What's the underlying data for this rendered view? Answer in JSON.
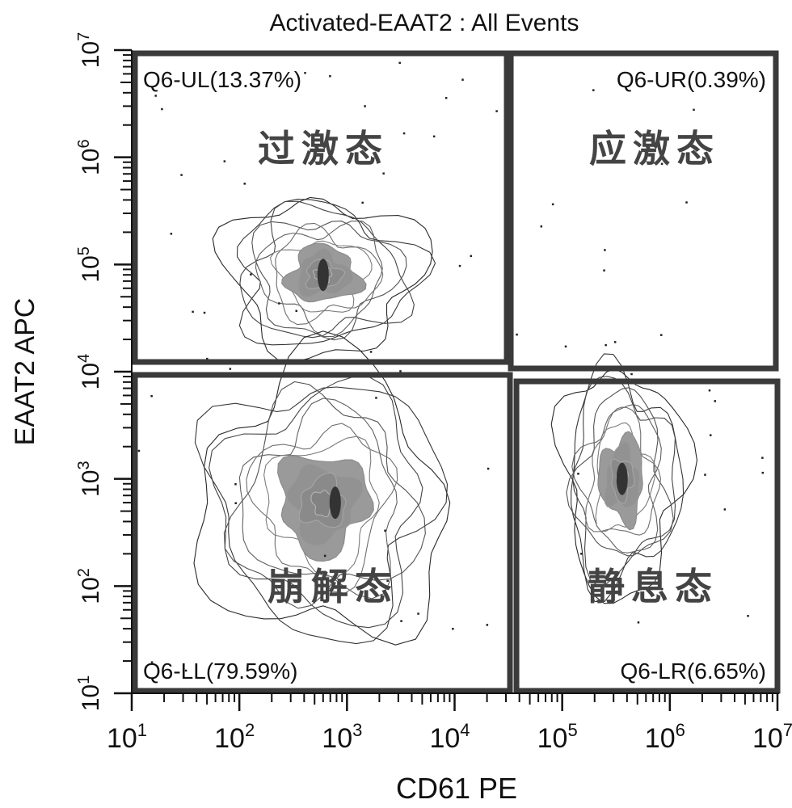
{
  "chart_data": {
    "type": "contour",
    "title": "Activated-EAAT2 : All Events",
    "xlabel": "CD61 PE",
    "ylabel": "EAAT2 APC",
    "xscale": "log",
    "yscale": "log",
    "xlim": [
      10,
      10000000
    ],
    "ylim": [
      10,
      10000000
    ],
    "x_ticks": [
      {
        "base": "10",
        "exp": "1",
        "value": 10
      },
      {
        "base": "10",
        "exp": "2",
        "value": 100
      },
      {
        "base": "10",
        "exp": "3",
        "value": 1000
      },
      {
        "base": "10",
        "exp": "4",
        "value": 10000
      },
      {
        "base": "10",
        "exp": "5",
        "value": 100000
      },
      {
        "base": "10",
        "exp": "6",
        "value": 1000000
      },
      {
        "base": "10",
        "exp": "7",
        "value": 10000000
      }
    ],
    "y_ticks": [
      {
        "base": "10",
        "exp": "1",
        "value": 10
      },
      {
        "base": "10",
        "exp": "2",
        "value": 100
      },
      {
        "base": "10",
        "exp": "3",
        "value": 1000
      },
      {
        "base": "10",
        "exp": "4",
        "value": 10000
      },
      {
        "base": "10",
        "exp": "5",
        "value": 100000
      },
      {
        "base": "10",
        "exp": "6",
        "value": 1000000
      },
      {
        "base": "10",
        "exp": "7",
        "value": 10000000
      }
    ],
    "gate_x": 31600,
    "gate_y": 10000,
    "quadrants": [
      {
        "id": "UL",
        "label": "Q6-UL(13.37%)",
        "percent": 13.37,
        "state": "过激态"
      },
      {
        "id": "UR",
        "label": "Q6-UR(0.39%)",
        "percent": 0.39,
        "state": "应激态"
      },
      {
        "id": "LL",
        "label": "Q6-LL(79.59%)",
        "percent": 79.59,
        "state": "崩解态"
      },
      {
        "id": "LR",
        "label": "Q6-LR(6.65%)",
        "percent": 6.65,
        "state": "静息态"
      }
    ],
    "populations": [
      {
        "quadrant": "UL",
        "x": 600,
        "y": 80000
      },
      {
        "quadrant": "LL",
        "x": 600,
        "y": 600
      },
      {
        "quadrant": "LR",
        "x": 360000,
        "y": 1000
      }
    ],
    "colors": {
      "gate": "#3a3a3a",
      "contour": "#555555",
      "axis": "#111111"
    }
  }
}
